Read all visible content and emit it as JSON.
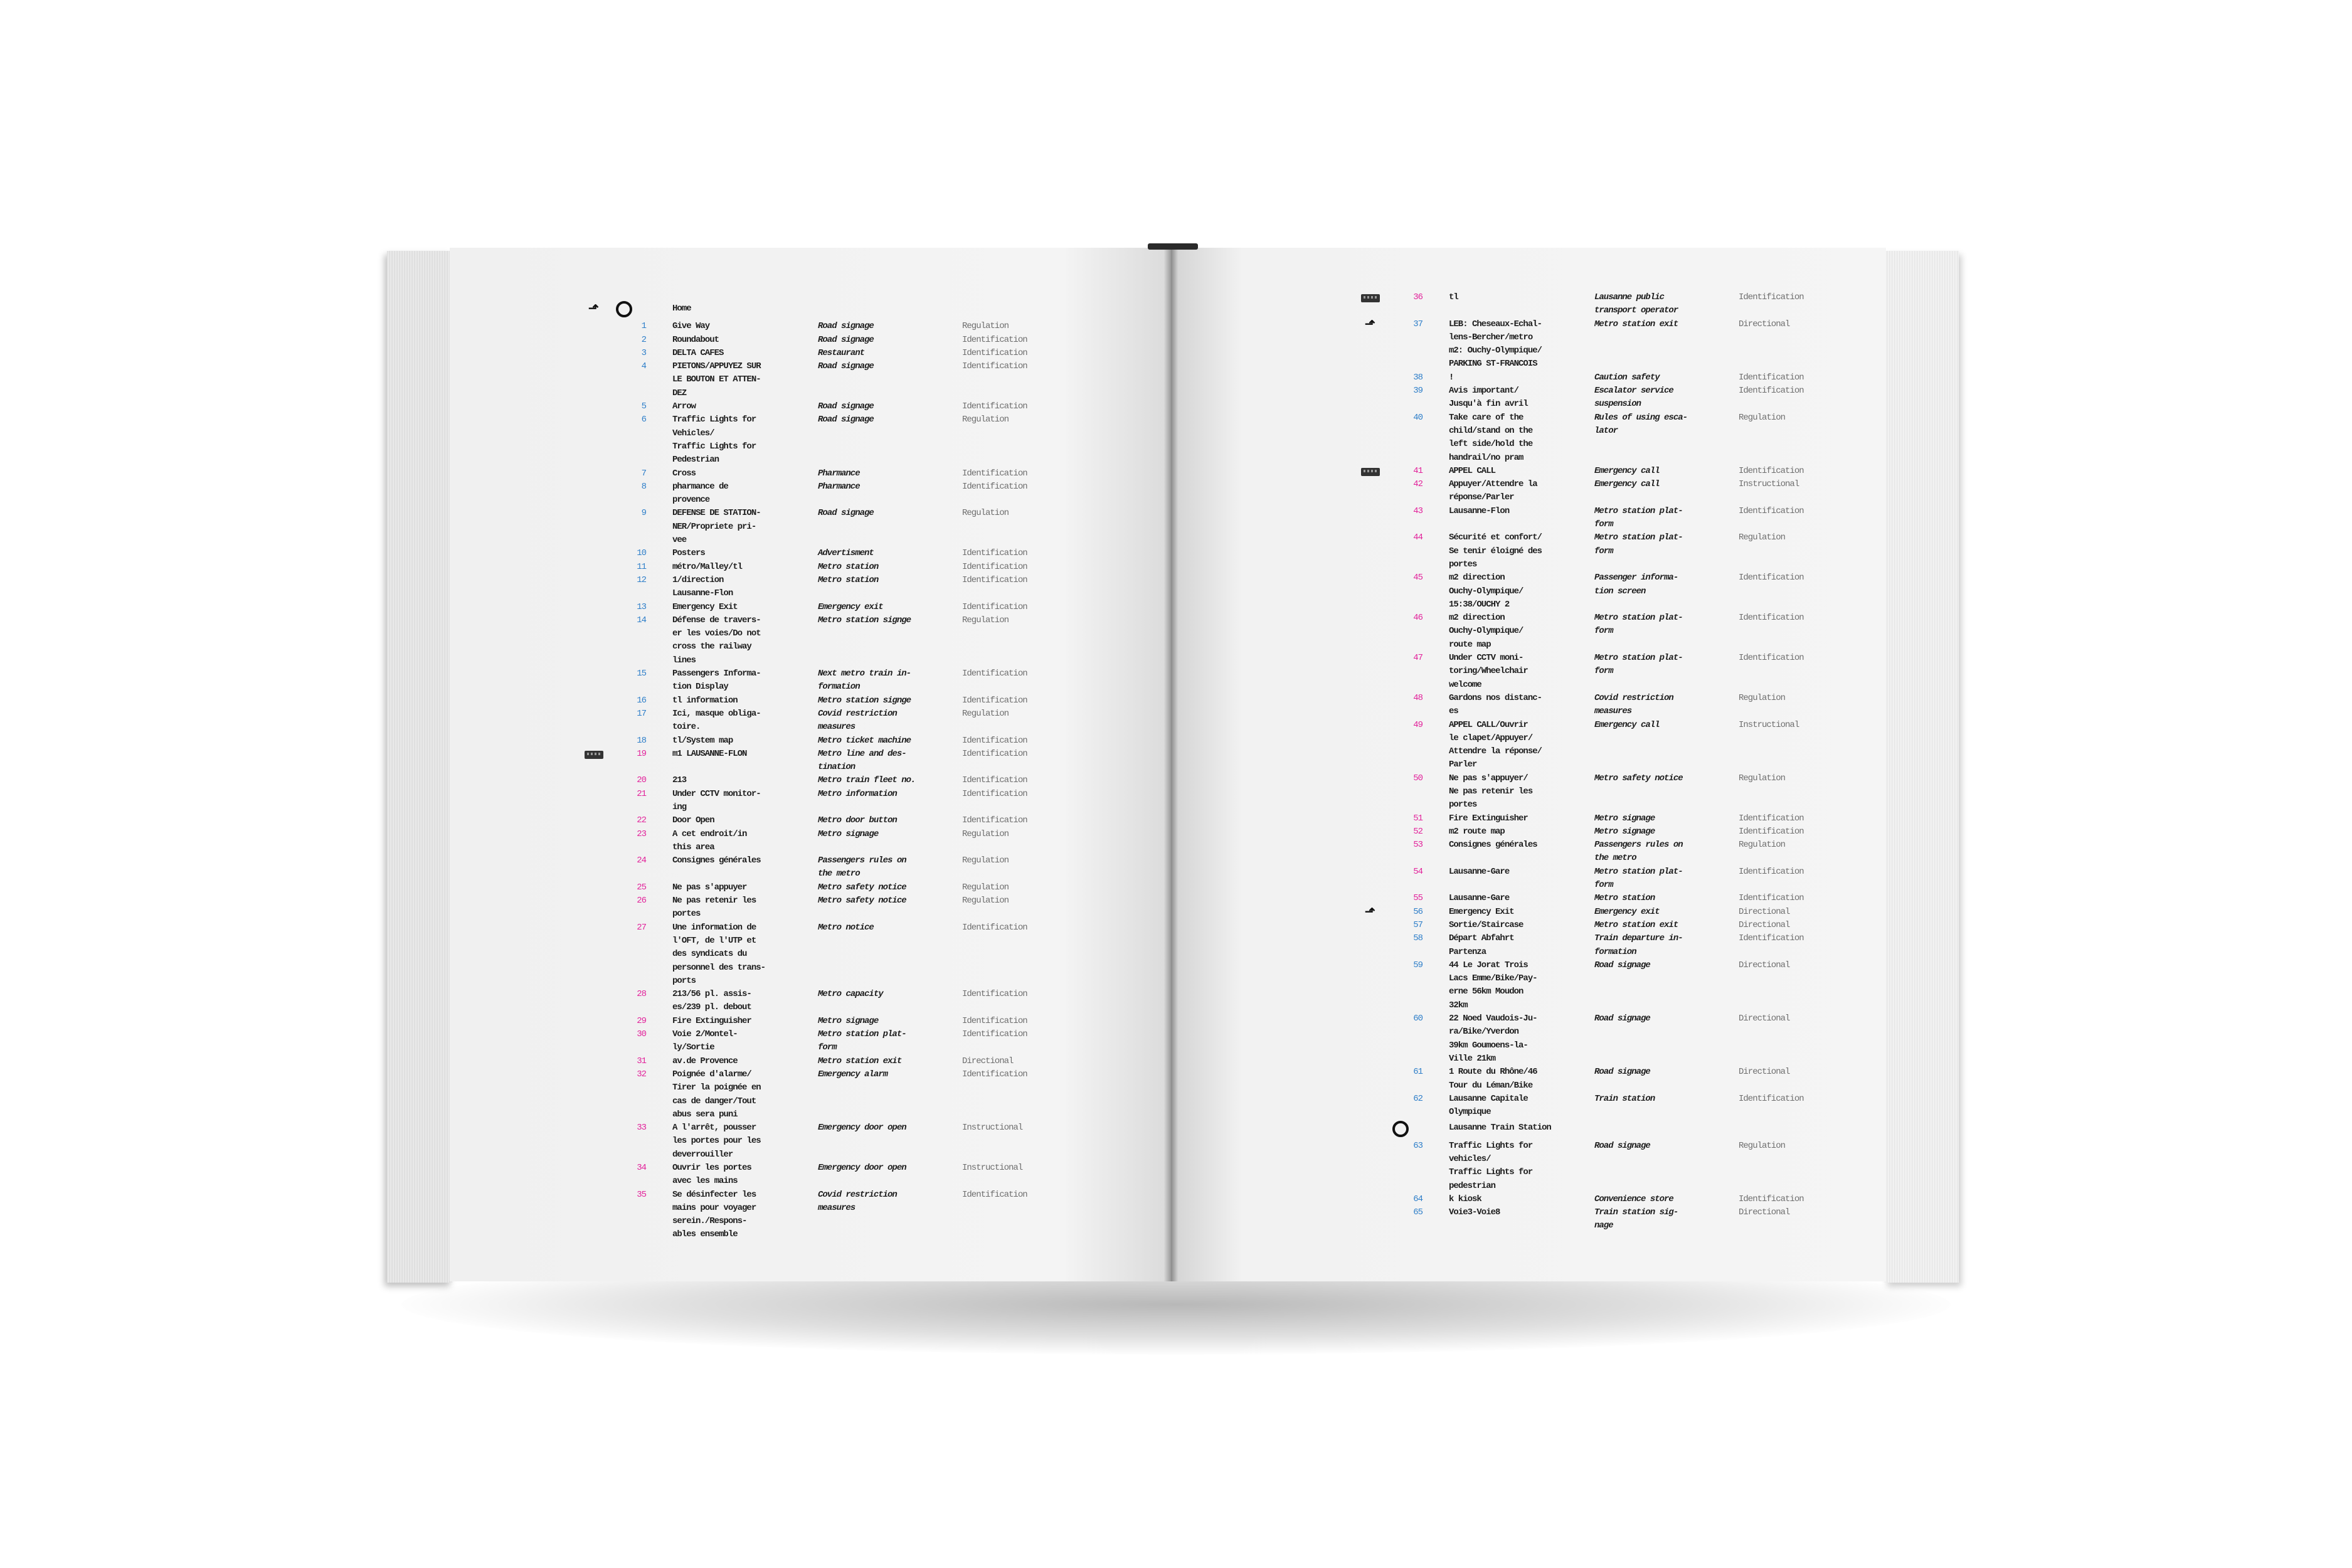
{
  "colors": {
    "blue": "#2f7fc9",
    "magenta": "#e2239b"
  },
  "left_page": {
    "section": {
      "icon": "direction-arrow-icon",
      "marker": "circle-icon",
      "label": "Home"
    },
    "rows": [
      {
        "num": "1",
        "color": "blue",
        "name": "Give Way",
        "cat": "Road signage",
        "type": "Regulation"
      },
      {
        "num": "2",
        "color": "blue",
        "name": "Roundabout",
        "cat": "Road signage",
        "type": "Identification"
      },
      {
        "num": "3",
        "color": "blue",
        "name": "DELTA CAFES",
        "cat": "Restaurant",
        "type": "Identification"
      },
      {
        "num": "4",
        "color": "blue",
        "name": "PIETONS/APPUYEZ SUR\nLE BOUTON ET ATTEN-\nDEZ",
        "cat": "Road signage",
        "type": "Identification"
      },
      {
        "num": "5",
        "color": "blue",
        "name": "Arrow",
        "cat": "Road signage",
        "type": "Identification"
      },
      {
        "num": "6",
        "color": "blue",
        "name": "Traffic Lights for\nVehicles/\nTraffic Lights for\nPedestrian",
        "cat": "Road signage",
        "type": "Regulation"
      },
      {
        "num": "7",
        "color": "blue",
        "name": "Cross",
        "cat": "Pharmance",
        "type": "Identification"
      },
      {
        "num": "8",
        "color": "blue",
        "name": "pharmance de\nprovence",
        "cat": "Pharmance",
        "type": "Identification"
      },
      {
        "num": "9",
        "color": "blue",
        "name": "DEFENSE DE STATION-\nNER/Propriete pri-\nvee",
        "cat": "Road signage",
        "type": "Regulation"
      },
      {
        "num": "10",
        "color": "blue",
        "name": "Posters",
        "cat": "Advertisment",
        "type": "Identification"
      },
      {
        "num": "11",
        "color": "blue",
        "name": "métro/Malley/tl",
        "cat": "Metro station",
        "type": "Identification"
      },
      {
        "num": "12",
        "color": "blue",
        "name": "1/direction\nLausanne-Flon",
        "cat": "Metro station",
        "type": "Identification"
      },
      {
        "num": "13",
        "color": "blue",
        "name": "Emergency Exit",
        "cat": "Emergency exit",
        "type": "Identification"
      },
      {
        "num": "14",
        "color": "blue",
        "name": "Défense de travers-\ner les voies/Do not\ncross the railway\nlines",
        "cat": "Metro station signge",
        "type": "Regulation"
      },
      {
        "num": "15",
        "color": "blue",
        "name": "Passengers Informa-\ntion Display",
        "cat": "Next metro train in-\nformation",
        "type": "Identification"
      },
      {
        "num": "16",
        "color": "blue",
        "name": "tl information",
        "cat": "Metro station signge",
        "type": "Identification"
      },
      {
        "num": "17",
        "color": "blue",
        "name": "Ici, masque obliga-\ntoire.",
        "cat": "Covid restriction\nmeasures",
        "type": "Regulation"
      },
      {
        "num": "18",
        "color": "blue",
        "name": "tl/System map",
        "cat": "Metro ticket machine",
        "type": "Identification"
      },
      {
        "num": "19",
        "color": "magenta",
        "icon": "metro-train-icon",
        "name": "m1 LAUSANNE-FLON",
        "cat": "Metro line and des-\ntination",
        "type": "Identification"
      },
      {
        "num": "20",
        "color": "magenta",
        "name": "213",
        "cat": "Metro train fleet no.",
        "type": "Identification"
      },
      {
        "num": "21",
        "color": "magenta",
        "name": "Under CCTV monitor-\ning",
        "cat": "Metro information",
        "type": "Identification"
      },
      {
        "num": "22",
        "color": "magenta",
        "name": "Door Open",
        "cat": "Metro door button",
        "type": "Identification"
      },
      {
        "num": "23",
        "color": "magenta",
        "name": "A cet endroit/in\nthis area",
        "cat": "Metro signage",
        "type": "Regulation"
      },
      {
        "num": "24",
        "color": "magenta",
        "name": "Consignes générales",
        "cat": "Passengers rules on\nthe metro",
        "type": "Regulation"
      },
      {
        "num": "25",
        "color": "magenta",
        "name": "Ne pas s'appuyer",
        "cat": "Metro safety notice",
        "type": "Regulation"
      },
      {
        "num": "26",
        "color": "magenta",
        "name": "Ne pas retenir les\nportes",
        "cat": "Metro safety notice",
        "type": "Regulation"
      },
      {
        "num": "27",
        "color": "magenta",
        "name": "Une information de\nl'OFT, de l'UTP et\ndes syndicats du\npersonnel des trans-\nports",
        "cat": "Metro notice",
        "type": "Identification"
      },
      {
        "num": "28",
        "color": "magenta",
        "name": "213/56 pl. assis-\nes/239 pl. debout",
        "cat": "Metro capacity",
        "type": "Identification"
      },
      {
        "num": "29",
        "color": "magenta",
        "name": "Fire Extinguisher",
        "cat": "Metro signage",
        "type": "Identification"
      },
      {
        "num": "30",
        "color": "magenta",
        "name": "Voie 2/Montel-\nly/Sortie",
        "cat": "Metro station plat-\nform",
        "type": "Identification"
      },
      {
        "num": "31",
        "color": "magenta",
        "name": "av.de Provence",
        "cat": "Metro station exit",
        "type": "Directional"
      },
      {
        "num": "32",
        "color": "magenta",
        "name": "Poignée d'alarme/\nTirer la poignée en\ncas de danger/Tout\nabus sera puni",
        "cat": "Emergency alarm",
        "type": "Identification"
      },
      {
        "num": "33",
        "color": "magenta",
        "name": "A l'arrêt, pousser\nles portes pour les\ndeverrouiller",
        "cat": "Emergency door open",
        "type": "Instructional"
      },
      {
        "num": "34",
        "color": "magenta",
        "name": "Ouvrir les portes\navec les mains",
        "cat": "Emergency door open",
        "type": "Instructional"
      },
      {
        "num": "35",
        "color": "magenta",
        "name": "Se désinfecter les\nmains pour voyager\nserein./Respons-\nables ensemble",
        "cat": "Covid restriction\nmeasures",
        "type": "Identification"
      }
    ]
  },
  "right_page": {
    "rows": [
      {
        "num": "36",
        "color": "magenta",
        "icon": "metro-train-icon",
        "name": "tl",
        "cat": "Lausanne public\ntransport operator",
        "type": "Identification"
      },
      {
        "num": "37",
        "color": "blue",
        "icon": "direction-arrow-icon",
        "name": "LEB: Cheseaux-Echal-\nlens-Bercher/metro\nm2: Ouchy-Olympique/\nPARKING ST-FRANCOIS",
        "cat": "Metro station exit",
        "type": "Directional"
      },
      {
        "num": "38",
        "color": "blue",
        "name": "!",
        "cat": "Caution safety",
        "type": "Identification"
      },
      {
        "num": "39",
        "color": "blue",
        "name": "Avis important/\nJusqu'à fin avril",
        "cat": "Escalator service\nsuspension",
        "type": "Identification"
      },
      {
        "num": "40",
        "color": "blue",
        "name": "Take care of the\nchild/stand on the\nleft side/hold the\nhandrail/no pram",
        "cat": "Rules of using esca-\nlator",
        "type": "Regulation"
      },
      {
        "num": "41",
        "color": "magenta",
        "icon": "metro-train-icon",
        "name": "APPEL CALL",
        "cat": "Emergency call",
        "type": "Identification"
      },
      {
        "num": "42",
        "color": "magenta",
        "name": "Appuyer/Attendre la\nréponse/Parler",
        "cat": "Emergency call",
        "type": "Instructional"
      },
      {
        "num": "43",
        "color": "magenta",
        "name": "Lausanne-Flon",
        "cat": "Metro station plat-\nform",
        "type": "Identification"
      },
      {
        "num": "44",
        "color": "magenta",
        "name": "Sécurité et confort/\nSe tenir éloigné des\nportes",
        "cat": "Metro station plat-\nform",
        "type": "Regulation"
      },
      {
        "num": "45",
        "color": "magenta",
        "name": "m2 direction\nOuchy-Olympique/\n15:38/OUCHY 2",
        "cat": "Passenger informa-\ntion screen",
        "type": "Identification"
      },
      {
        "num": "46",
        "color": "magenta",
        "name": "m2 direction\nOuchy-Olympique/\nroute map",
        "cat": "Metro station plat-\nform",
        "type": "Identification"
      },
      {
        "num": "47",
        "color": "magenta",
        "name": "Under CCTV moni-\ntoring/Wheelchair\nwelcome",
        "cat": "Metro station plat-\nform",
        "type": "Identification"
      },
      {
        "num": "48",
        "color": "magenta",
        "name": "Gardons nos distanc-\nes",
        "cat": "Covid restriction\nmeasures",
        "type": "Regulation"
      },
      {
        "num": "49",
        "color": "magenta",
        "name": "APPEL CALL/Ouvrir\nle clapet/Appuyer/\nAttendre la réponse/\nParler",
        "cat": "Emergency call",
        "type": "Instructional"
      },
      {
        "num": "50",
        "color": "magenta",
        "name": "Ne pas s'appuyer/\nNe pas retenir les\nportes",
        "cat": "Metro safety notice",
        "type": "Regulation"
      },
      {
        "num": "51",
        "color": "magenta",
        "name": "Fire Extinguisher",
        "cat": "Metro signage",
        "type": "Identification"
      },
      {
        "num": "52",
        "color": "magenta",
        "name": "m2 route map",
        "cat": "Metro signage",
        "type": "Identification"
      },
      {
        "num": "53",
        "color": "magenta",
        "name": "Consignes générales",
        "cat": "Passengers rules on\nthe metro",
        "type": "Regulation"
      },
      {
        "num": "54",
        "color": "magenta",
        "name": "Lausanne-Gare",
        "cat": "Metro station plat-\nform",
        "type": "Identification"
      },
      {
        "num": "55",
        "color": "magenta",
        "name": "Lausanne-Gare",
        "cat": "Metro station",
        "type": "Identification"
      },
      {
        "num": "56",
        "color": "blue",
        "icon": "direction-arrow-icon",
        "name": "Emergency Exit",
        "cat": "Emergency exit",
        "type": "Directional"
      },
      {
        "num": "57",
        "color": "blue",
        "name": "Sortie/Staircase",
        "cat": "Metro station exit",
        "type": "Directional"
      },
      {
        "num": "58",
        "color": "blue",
        "name": "Départ Abfahrt\nPartenza",
        "cat": "Train departure in-\nformation",
        "type": "Identification"
      },
      {
        "num": "59",
        "color": "blue",
        "name": "44 Le Jorat Trois\nLacs Emme/Bike/Pay-\nerne 56km Moudon\n32km",
        "cat": "Road signage",
        "type": "Directional"
      },
      {
        "num": "60",
        "color": "blue",
        "name": "22 Noed Vaudois-Ju-\nra/Bike/Yverdon\n39km Goumoens-la-\nVille 21km",
        "cat": "Road signage",
        "type": "Directional"
      },
      {
        "num": "61",
        "color": "blue",
        "name": "1 Route du Rhône/46\nTour du Léman/Bike",
        "cat": "Road signage",
        "type": "Directional"
      },
      {
        "num": "62",
        "color": "blue",
        "name": "Lausanne Capitale\nOlympique",
        "cat": "Train station",
        "type": "Identification"
      },
      {
        "section": true,
        "marker": "circle-icon",
        "label": "Lausanne Train Station"
      },
      {
        "num": "63",
        "color": "blue",
        "name": "Traffic Lights for\nvehicles/\nTraffic Lights for\npedestrian",
        "cat": "Road signage",
        "type": "Regulation"
      },
      {
        "num": "64",
        "color": "blue",
        "name": "k kiosk",
        "cat": "Convenience store",
        "type": "Identification"
      },
      {
        "num": "65",
        "color": "blue",
        "name": "Voie3-Voie8",
        "cat": "Train station sig-\nnage",
        "type": "Directional"
      }
    ]
  }
}
